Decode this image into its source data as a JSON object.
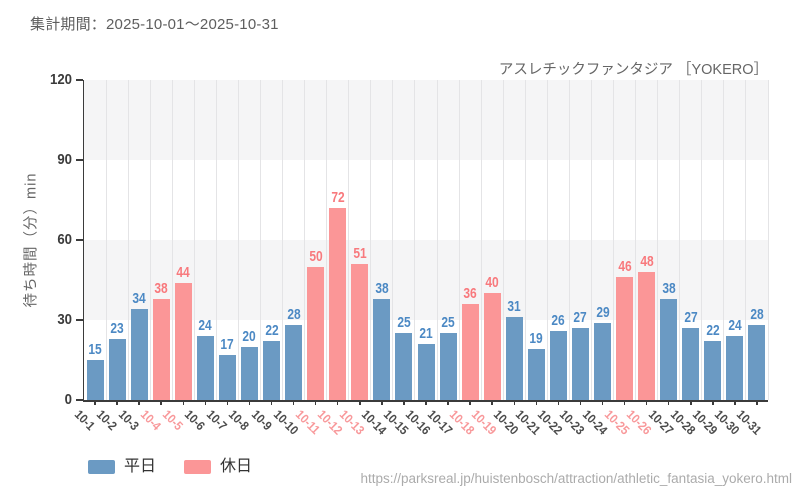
{
  "header": {
    "period_title": "集計期間：2025-10-01～2025-10-31",
    "attraction_title": "アスレチックファンタジア ［YOKERO］"
  },
  "chart_data": {
    "type": "bar",
    "title": "アスレチックファンタジア ［YOKERO］ 待ち時間 集計期間 2025-10-01～2025-10-31",
    "xlabel": "",
    "ylabel": "待ち時間（分）min",
    "ylim": [
      0,
      120
    ],
    "yticks": [
      0,
      30,
      60,
      90,
      120
    ],
    "band_ranges": [
      [
        30,
        60
      ],
      [
        90,
        120
      ]
    ],
    "grid": "vertical gridline per day, alternating horizontal shaded bands",
    "legend_position": "bottom-left",
    "categories": [
      "10-1",
      "10-2",
      "10-3",
      "10-4",
      "10-5",
      "10-6",
      "10-7",
      "10-8",
      "10-9",
      "10-10",
      "10-11",
      "10-12",
      "10-13",
      "10-14",
      "10-15",
      "10-16",
      "10-17",
      "10-18",
      "10-19",
      "10-20",
      "10-21",
      "10-22",
      "10-23",
      "10-24",
      "10-25",
      "10-26",
      "10-27",
      "10-28",
      "10-29",
      "10-30",
      "10-31"
    ],
    "values": [
      15,
      23,
      34,
      38,
      44,
      24,
      17,
      20,
      22,
      28,
      50,
      72,
      51,
      38,
      25,
      21,
      25,
      36,
      40,
      31,
      19,
      26,
      27,
      29,
      46,
      48,
      38,
      27,
      22,
      24,
      28
    ],
    "day_type": [
      "weekday",
      "weekday",
      "weekday",
      "holiday",
      "holiday",
      "weekday",
      "weekday",
      "weekday",
      "weekday",
      "weekday",
      "holiday",
      "holiday",
      "holiday",
      "weekday",
      "weekday",
      "weekday",
      "weekday",
      "holiday",
      "holiday",
      "weekday",
      "weekday",
      "weekday",
      "weekday",
      "weekday",
      "holiday",
      "holiday",
      "weekday",
      "weekday",
      "weekday",
      "weekday",
      "weekday"
    ],
    "legend": [
      {
        "label": "平日",
        "type": "weekday"
      },
      {
        "label": "休日",
        "type": "holiday"
      }
    ],
    "colors": {
      "weekday_bar": "#6b9ac3",
      "holiday_bar": "#fb9697",
      "weekday_value_label": "#4c89c4",
      "holiday_value_label": "#f8797d",
      "weekday_tick_label": "#4b4b4b",
      "holiday_tick_label": "#f8989a",
      "band": "#f5f5f6",
      "gridline": "#e4e4e6",
      "spine": "#3b3b3b",
      "ytick_label": "#3b3b3b"
    }
  },
  "footer": {
    "url": "https://parksreal.jp/huistenbosch/attraction/athletic_fantasia_yokero.html"
  }
}
